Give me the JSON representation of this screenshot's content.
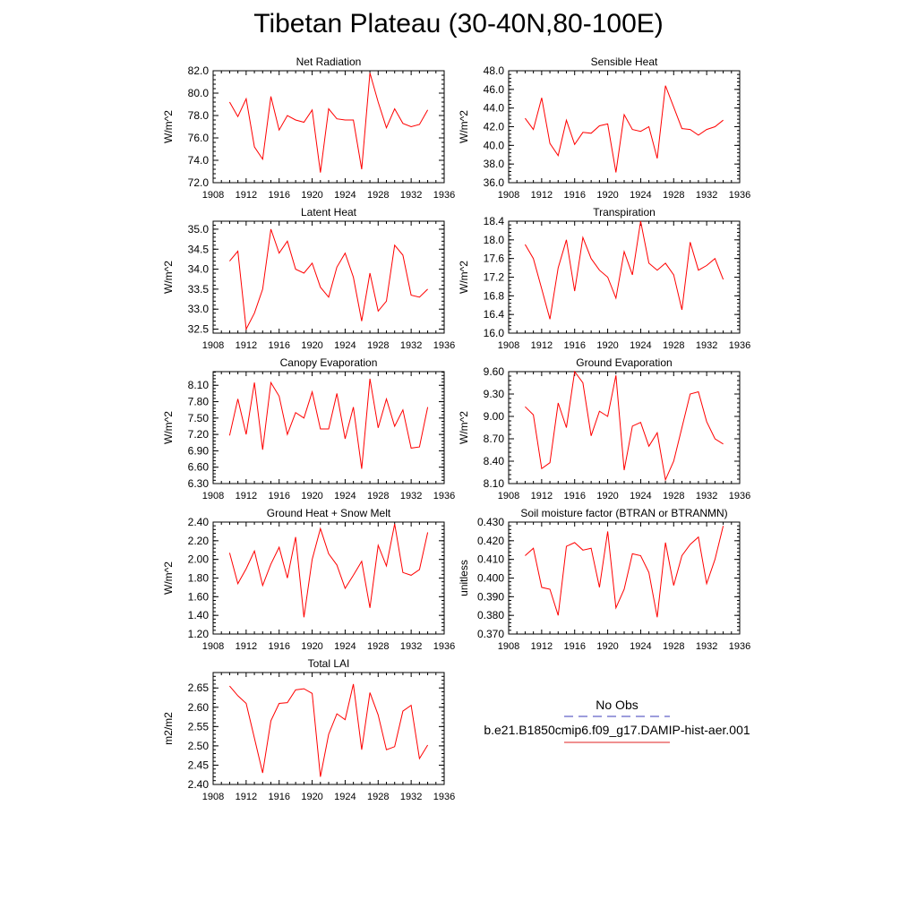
{
  "page_title": "Tibetan Plateau (30-40N,80-100E)",
  "legend": {
    "entries": [
      {
        "label": "No Obs",
        "color": "#3b3bb8",
        "dash": true
      },
      {
        "label": "b.e21.B1850cmip6.f09_g17.DAMIP-hist-aer.001",
        "color": "#e02020",
        "dash": false
      }
    ]
  },
  "chart_data": [
    {
      "type": "line",
      "title": "Net Radiation",
      "ylabel": "W/m^2",
      "xlabel": "",
      "xlim": [
        1908,
        1936
      ],
      "ylim": [
        72.0,
        82.0
      ],
      "xticks": [
        1908,
        1912,
        1916,
        1920,
        1924,
        1928,
        1932,
        1936
      ],
      "yticks": [
        "72.0",
        "74.0",
        "76.0",
        "78.0",
        "80.0",
        "82.0"
      ],
      "series": [
        {
          "color": "#ff0000",
          "x": [
            1910,
            1911,
            1912,
            1913,
            1914,
            1915,
            1916,
            1917,
            1918,
            1919,
            1920,
            1921,
            1922,
            1923,
            1924,
            1925,
            1926,
            1927,
            1928,
            1929,
            1930,
            1931,
            1932,
            1933,
            1934
          ],
          "y": [
            79.2,
            77.9,
            79.5,
            75.2,
            74.1,
            79.7,
            76.7,
            78.0,
            77.6,
            77.4,
            78.5,
            72.9,
            78.6,
            77.7,
            77.6,
            77.6,
            73.2,
            81.8,
            79.2,
            76.9,
            78.6,
            77.3,
            77.0,
            77.2,
            78.5
          ]
        }
      ]
    },
    {
      "type": "line",
      "title": "Sensible Heat",
      "ylabel": "W/m^2",
      "xlabel": "",
      "xlim": [
        1908,
        1936
      ],
      "ylim": [
        36.0,
        48.0
      ],
      "xticks": [
        1908,
        1912,
        1916,
        1920,
        1924,
        1928,
        1932,
        1936
      ],
      "yticks": [
        "36.0",
        "38.0",
        "40.0",
        "42.0",
        "44.0",
        "46.0",
        "48.0"
      ],
      "series": [
        {
          "color": "#ff0000",
          "x": [
            1910,
            1911,
            1912,
            1913,
            1914,
            1915,
            1916,
            1917,
            1918,
            1919,
            1920,
            1921,
            1922,
            1923,
            1924,
            1925,
            1926,
            1927,
            1928,
            1929,
            1930,
            1931,
            1932,
            1933,
            1934
          ],
          "y": [
            42.9,
            41.7,
            45.1,
            40.2,
            38.9,
            42.7,
            40.1,
            41.4,
            41.3,
            42.1,
            42.3,
            37.1,
            43.3,
            41.7,
            41.5,
            42.0,
            38.6,
            46.4,
            44.1,
            41.8,
            41.7,
            41.1,
            41.7,
            42.0,
            42.7
          ]
        }
      ]
    },
    {
      "type": "line",
      "title": "Latent Heat",
      "ylabel": "W/m^2",
      "xlabel": "",
      "xlim": [
        1908,
        1936
      ],
      "ylim": [
        32.4,
        35.2
      ],
      "xticks": [
        1908,
        1912,
        1916,
        1920,
        1924,
        1928,
        1932,
        1936
      ],
      "yticks": [
        "32.5",
        "33.0",
        "33.5",
        "34.0",
        "34.5",
        "35.0"
      ],
      "series": [
        {
          "color": "#ff0000",
          "x": [
            1910,
            1911,
            1912,
            1913,
            1914,
            1915,
            1916,
            1917,
            1918,
            1919,
            1920,
            1921,
            1922,
            1923,
            1924,
            1925,
            1926,
            1927,
            1928,
            1929,
            1930,
            1931,
            1932,
            1933,
            1934
          ],
          "y": [
            34.2,
            34.45,
            32.5,
            32.9,
            33.5,
            35.0,
            34.4,
            34.7,
            34.0,
            33.9,
            34.15,
            33.55,
            33.3,
            34.05,
            34.4,
            33.8,
            32.7,
            33.9,
            32.95,
            33.2,
            34.6,
            34.35,
            33.35,
            33.3,
            33.5
          ]
        }
      ]
    },
    {
      "type": "line",
      "title": "Transpiration",
      "ylabel": "W/m^2",
      "xlabel": "",
      "xlim": [
        1908,
        1936
      ],
      "ylim": [
        16.0,
        18.4
      ],
      "xticks": [
        1908,
        1912,
        1916,
        1920,
        1924,
        1928,
        1932,
        1936
      ],
      "yticks": [
        "16.0",
        "16.4",
        "16.8",
        "17.2",
        "17.6",
        "18.0",
        "18.4"
      ],
      "series": [
        {
          "color": "#ff0000",
          "x": [
            1910,
            1911,
            1912,
            1913,
            1914,
            1915,
            1916,
            1917,
            1918,
            1919,
            1920,
            1921,
            1922,
            1923,
            1924,
            1925,
            1926,
            1927,
            1928,
            1929,
            1930,
            1931,
            1932,
            1933,
            1934
          ],
          "y": [
            17.9,
            17.6,
            16.95,
            16.3,
            17.4,
            18.0,
            16.9,
            18.05,
            17.6,
            17.35,
            17.2,
            16.75,
            17.75,
            17.25,
            18.4,
            17.5,
            17.35,
            17.5,
            17.25,
            16.5,
            17.95,
            17.35,
            17.45,
            17.6,
            17.15
          ]
        }
      ]
    },
    {
      "type": "line",
      "title": "Canopy Evaporation",
      "ylabel": "W/m^2",
      "xlabel": "",
      "xlim": [
        1908,
        1936
      ],
      "ylim": [
        6.3,
        8.35
      ],
      "xticks": [
        1908,
        1912,
        1916,
        1920,
        1924,
        1928,
        1932,
        1936
      ],
      "yticks": [
        "6.30",
        "6.60",
        "6.90",
        "7.20",
        "7.50",
        "7.80",
        "8.10"
      ],
      "series": [
        {
          "color": "#ff0000",
          "x": [
            1910,
            1911,
            1912,
            1913,
            1914,
            1915,
            1916,
            1917,
            1918,
            1919,
            1920,
            1921,
            1922,
            1923,
            1924,
            1925,
            1926,
            1927,
            1928,
            1929,
            1930,
            1931,
            1932,
            1933,
            1934
          ],
          "y": [
            7.18,
            7.85,
            7.2,
            8.15,
            6.92,
            8.15,
            7.9,
            7.2,
            7.6,
            7.5,
            7.98,
            7.3,
            7.3,
            7.95,
            7.12,
            7.7,
            6.57,
            8.22,
            7.32,
            7.85,
            7.35,
            7.65,
            6.95,
            6.97,
            7.7
          ]
        }
      ]
    },
    {
      "type": "line",
      "title": "Ground Evaporation",
      "ylabel": "W/m^2",
      "xlabel": "",
      "xlim": [
        1908,
        1936
      ],
      "ylim": [
        8.1,
        9.6
      ],
      "xticks": [
        1908,
        1912,
        1916,
        1920,
        1924,
        1928,
        1932,
        1936
      ],
      "yticks": [
        "8.10",
        "8.40",
        "8.70",
        "9.00",
        "9.30",
        "9.60"
      ],
      "series": [
        {
          "color": "#ff0000",
          "x": [
            1910,
            1911,
            1912,
            1913,
            1914,
            1915,
            1916,
            1917,
            1918,
            1919,
            1920,
            1921,
            1922,
            1923,
            1924,
            1925,
            1926,
            1927,
            1928,
            1929,
            1930,
            1931,
            1932,
            1933,
            1934
          ],
          "y": [
            9.13,
            9.02,
            8.3,
            8.38,
            9.18,
            8.85,
            9.6,
            9.45,
            8.74,
            9.07,
            9.0,
            9.55,
            8.28,
            8.87,
            8.92,
            8.6,
            8.78,
            8.15,
            8.4,
            8.85,
            9.3,
            9.33,
            8.93,
            8.7,
            8.63
          ]
        }
      ]
    },
    {
      "type": "line",
      "title": "Ground Heat + Snow Melt",
      "ylabel": "W/m^2",
      "xlabel": "",
      "xlim": [
        1908,
        1936
      ],
      "ylim": [
        1.2,
        2.4
      ],
      "xticks": [
        1908,
        1912,
        1916,
        1920,
        1924,
        1928,
        1932,
        1936
      ],
      "yticks": [
        "1.20",
        "1.40",
        "1.60",
        "1.80",
        "2.00",
        "2.20",
        "2.40"
      ],
      "series": [
        {
          "color": "#ff0000",
          "x": [
            1910,
            1911,
            1912,
            1913,
            1914,
            1915,
            1916,
            1917,
            1918,
            1919,
            1920,
            1921,
            1922,
            1923,
            1924,
            1925,
            1926,
            1927,
            1928,
            1929,
            1930,
            1931,
            1932,
            1933,
            1934
          ],
          "y": [
            2.07,
            1.74,
            1.9,
            2.09,
            1.72,
            1.95,
            2.13,
            1.8,
            2.24,
            1.38,
            2.0,
            2.33,
            2.06,
            1.94,
            1.69,
            1.83,
            1.98,
            1.48,
            2.15,
            1.93,
            2.38,
            1.86,
            1.83,
            1.89,
            2.29
          ]
        }
      ]
    },
    {
      "type": "line",
      "title": "Soil moisture factor (BTRAN or BTRANMN)",
      "ylabel": "unitless",
      "xlabel": "",
      "xlim": [
        1908,
        1936
      ],
      "ylim": [
        0.37,
        0.43
      ],
      "xticks": [
        1908,
        1912,
        1916,
        1920,
        1924,
        1928,
        1932,
        1936
      ],
      "yticks": [
        "0.370",
        "0.380",
        "0.390",
        "0.400",
        "0.410",
        "0.420",
        "0.430"
      ],
      "series": [
        {
          "color": "#ff0000",
          "x": [
            1910,
            1911,
            1912,
            1913,
            1914,
            1915,
            1916,
            1917,
            1918,
            1919,
            1920,
            1921,
            1922,
            1923,
            1924,
            1925,
            1926,
            1927,
            1928,
            1929,
            1930,
            1931,
            1932,
            1933,
            1934
          ],
          "y": [
            0.412,
            0.416,
            0.395,
            0.394,
            0.38,
            0.417,
            0.419,
            0.415,
            0.416,
            0.395,
            0.425,
            0.384,
            0.394,
            0.413,
            0.412,
            0.403,
            0.379,
            0.419,
            0.396,
            0.412,
            0.418,
            0.422,
            0.397,
            0.41,
            0.428
          ]
        }
      ]
    },
    {
      "type": "line",
      "title": "Total LAI",
      "ylabel": "m2/m2",
      "xlabel": "",
      "xlim": [
        1908,
        1936
      ],
      "ylim": [
        2.4,
        2.69
      ],
      "xticks": [
        1908,
        1912,
        1916,
        1920,
        1924,
        1928,
        1932,
        1936
      ],
      "yticks": [
        "2.40",
        "2.45",
        "2.50",
        "2.55",
        "2.60",
        "2.65"
      ],
      "series": [
        {
          "color": "#ff0000",
          "x": [
            1910,
            1911,
            1912,
            1913,
            1914,
            1915,
            1916,
            1917,
            1918,
            1919,
            1920,
            1921,
            1922,
            1923,
            1924,
            1925,
            1926,
            1927,
            1928,
            1929,
            1930,
            1931,
            1932,
            1933,
            1934
          ],
          "y": [
            2.655,
            2.63,
            2.61,
            2.52,
            2.43,
            2.565,
            2.61,
            2.612,
            2.645,
            2.648,
            2.636,
            2.42,
            2.53,
            2.583,
            2.568,
            2.66,
            2.49,
            2.638,
            2.58,
            2.49,
            2.498,
            2.59,
            2.605,
            2.467,
            2.502
          ]
        }
      ]
    }
  ]
}
